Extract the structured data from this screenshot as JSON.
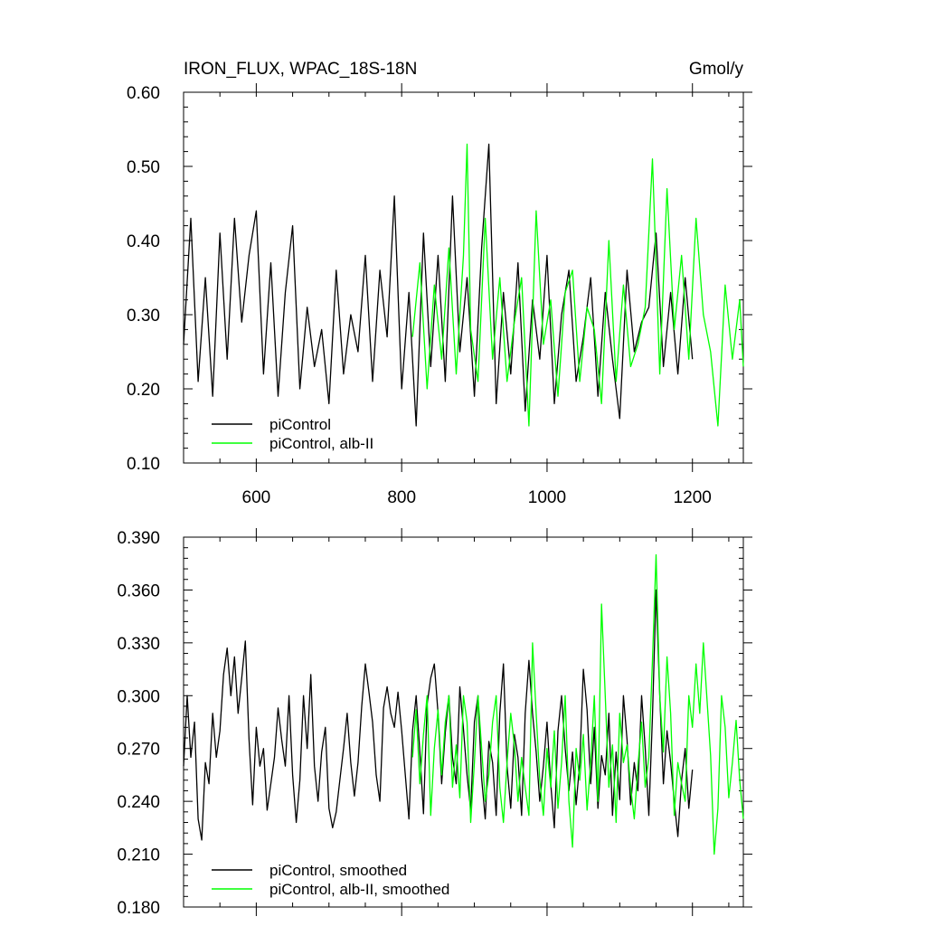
{
  "colors": {
    "piControl": "#000000",
    "alb_II": "#00ff00",
    "axis": "#000000",
    "background": "#ffffff"
  },
  "chart_data": [
    {
      "type": "line",
      "title": "IRON_FLUX, WPAC_18S-18N",
      "units": "Gmol/y",
      "xlim": [
        500,
        1270
      ],
      "ylim": [
        0.1,
        0.6
      ],
      "x_ticks": [
        600,
        800,
        1000,
        1200
      ],
      "x_tick_labels": [
        "600",
        "800",
        "1000",
        "1200"
      ],
      "y_ticks": [
        0.1,
        0.2,
        0.3,
        0.4,
        0.5,
        0.6
      ],
      "y_tick_labels": [
        "0.10",
        "0.20",
        "0.30",
        "0.40",
        "0.50",
        "0.60"
      ],
      "grid": false,
      "legend_position": "bottom-left",
      "series": [
        {
          "name": "piControl",
          "color_key": "piControl",
          "x": [
            500,
            510,
            520,
            530,
            540,
            550,
            560,
            570,
            580,
            590,
            600,
            610,
            620,
            630,
            640,
            650,
            660,
            670,
            680,
            690,
            700,
            710,
            720,
            730,
            740,
            750,
            760,
            770,
            780,
            790,
            800,
            810,
            820,
            830,
            840,
            850,
            860,
            870,
            880,
            890,
            900,
            910,
            920,
            930,
            940,
            950,
            960,
            970,
            980,
            990,
            1000,
            1010,
            1020,
            1030,
            1040,
            1050,
            1060,
            1070,
            1080,
            1090,
            1100,
            1110,
            1120,
            1130,
            1140,
            1150,
            1160,
            1170,
            1180,
            1190,
            1200
          ],
          "values": [
            0.26,
            0.43,
            0.21,
            0.35,
            0.19,
            0.41,
            0.24,
            0.43,
            0.29,
            0.38,
            0.44,
            0.22,
            0.37,
            0.19,
            0.33,
            0.42,
            0.2,
            0.31,
            0.23,
            0.28,
            0.18,
            0.36,
            0.22,
            0.3,
            0.25,
            0.38,
            0.21,
            0.36,
            0.27,
            0.46,
            0.2,
            0.33,
            0.15,
            0.41,
            0.23,
            0.38,
            0.21,
            0.46,
            0.25,
            0.35,
            0.19,
            0.39,
            0.53,
            0.18,
            0.33,
            0.22,
            0.37,
            0.17,
            0.32,
            0.24,
            0.38,
            0.18,
            0.3,
            0.36,
            0.21,
            0.27,
            0.35,
            0.19,
            0.33,
            0.24,
            0.16,
            0.36,
            0.25,
            0.29,
            0.31,
            0.41,
            0.23,
            0.33,
            0.22,
            0.35,
            0.24
          ]
        },
        {
          "name": "piControl, alb-II",
          "color_key": "alb_II",
          "x": [
            815,
            825,
            835,
            845,
            855,
            865,
            875,
            885,
            890,
            895,
            905,
            915,
            925,
            935,
            945,
            955,
            965,
            975,
            985,
            995,
            1005,
            1015,
            1025,
            1035,
            1045,
            1055,
            1065,
            1075,
            1085,
            1095,
            1105,
            1115,
            1125,
            1135,
            1145,
            1155,
            1165,
            1175,
            1185,
            1195,
            1205,
            1215,
            1225,
            1235,
            1245,
            1255,
            1265,
            1270
          ],
          "values": [
            0.27,
            0.37,
            0.2,
            0.34,
            0.24,
            0.39,
            0.22,
            0.38,
            0.53,
            0.28,
            0.21,
            0.43,
            0.24,
            0.35,
            0.21,
            0.29,
            0.35,
            0.15,
            0.44,
            0.26,
            0.32,
            0.19,
            0.33,
            0.36,
            0.21,
            0.31,
            0.28,
            0.18,
            0.4,
            0.21,
            0.34,
            0.23,
            0.26,
            0.31,
            0.51,
            0.22,
            0.47,
            0.28,
            0.38,
            0.24,
            0.43,
            0.3,
            0.25,
            0.15,
            0.34,
            0.24,
            0.32,
            0.23
          ]
        }
      ]
    },
    {
      "type": "line",
      "xlim": [
        500,
        1270
      ],
      "ylim": [
        0.18,
        0.39
      ],
      "x_ticks": [
        600,
        800,
        1000,
        1200
      ],
      "y_ticks": [
        0.18,
        0.21,
        0.24,
        0.27,
        0.3,
        0.33,
        0.36,
        0.39
      ],
      "y_tick_labels": [
        "0.180",
        "0.210",
        "0.240",
        "0.270",
        "0.300",
        "0.330",
        "0.360",
        "0.390"
      ],
      "grid": false,
      "legend_position": "bottom-left",
      "series": [
        {
          "name": "piControl, smoothed",
          "color_key": "piControl",
          "x": [
            500,
            505,
            510,
            515,
            520,
            525,
            530,
            535,
            540,
            545,
            550,
            555,
            560,
            565,
            570,
            575,
            580,
            585,
            590,
            595,
            600,
            605,
            610,
            615,
            620,
            625,
            630,
            635,
            640,
            645,
            650,
            655,
            660,
            665,
            670,
            675,
            680,
            685,
            690,
            695,
            700,
            705,
            710,
            715,
            720,
            725,
            730,
            735,
            740,
            745,
            750,
            755,
            760,
            765,
            770,
            775,
            780,
            785,
            790,
            795,
            800,
            805,
            810,
            815,
            820,
            825,
            830,
            835,
            840,
            845,
            850,
            855,
            860,
            865,
            870,
            875,
            880,
            885,
            890,
            895,
            900,
            905,
            910,
            915,
            920,
            925,
            930,
            935,
            940,
            945,
            950,
            955,
            960,
            965,
            970,
            975,
            980,
            985,
            990,
            995,
            1000,
            1005,
            1010,
            1015,
            1020,
            1025,
            1030,
            1035,
            1040,
            1045,
            1050,
            1055,
            1060,
            1065,
            1070,
            1075,
            1080,
            1085,
            1090,
            1095,
            1100,
            1105,
            1110,
            1115,
            1120,
            1125,
            1130,
            1135,
            1140,
            1145,
            1150,
            1155,
            1160,
            1165,
            1170,
            1175,
            1180,
            1185,
            1190,
            1195,
            1200
          ],
          "values": [
            0.26,
            0.3,
            0.265,
            0.285,
            0.23,
            0.218,
            0.262,
            0.25,
            0.29,
            0.265,
            0.28,
            0.312,
            0.327,
            0.3,
            0.322,
            0.29,
            0.31,
            0.331,
            0.275,
            0.238,
            0.282,
            0.26,
            0.27,
            0.235,
            0.25,
            0.265,
            0.293,
            0.275,
            0.26,
            0.3,
            0.255,
            0.228,
            0.252,
            0.3,
            0.27,
            0.312,
            0.26,
            0.24,
            0.268,
            0.282,
            0.236,
            0.225,
            0.234,
            0.252,
            0.27,
            0.29,
            0.262,
            0.243,
            0.262,
            0.294,
            0.318,
            0.302,
            0.285,
            0.255,
            0.24,
            0.293,
            0.305,
            0.29,
            0.282,
            0.302,
            0.28,
            0.255,
            0.23,
            0.28,
            0.3,
            0.268,
            0.233,
            0.295,
            0.31,
            0.318,
            0.29,
            0.25,
            0.279,
            0.3,
            0.265,
            0.25,
            0.305,
            0.281,
            0.255,
            0.235,
            0.285,
            0.3,
            0.253,
            0.23,
            0.274,
            0.262,
            0.232,
            0.29,
            0.318,
            0.26,
            0.236,
            0.278,
            0.265,
            0.232,
            0.29,
            0.32,
            0.29,
            0.268,
            0.24,
            0.26,
            0.285,
            0.25,
            0.225,
            0.28,
            0.3,
            0.27,
            0.246,
            0.268,
            0.238,
            0.262,
            0.315,
            0.292,
            0.25,
            0.282,
            0.236,
            0.266,
            0.255,
            0.29,
            0.232,
            0.268,
            0.241,
            0.3,
            0.275,
            0.238,
            0.262,
            0.246,
            0.3,
            0.27,
            0.232,
            0.288,
            0.36,
            0.3,
            0.25,
            0.28,
            0.262,
            0.24,
            0.22,
            0.252,
            0.27,
            0.236,
            0.258
          ]
        },
        {
          "name": "piControl, alb-II, smoothed",
          "color_key": "alb_II",
          "x": [
            815,
            820,
            825,
            830,
            835,
            840,
            845,
            850,
            855,
            860,
            865,
            870,
            875,
            880,
            885,
            890,
            895,
            900,
            905,
            910,
            915,
            920,
            925,
            930,
            935,
            940,
            945,
            950,
            955,
            960,
            965,
            970,
            975,
            980,
            985,
            990,
            995,
            1000,
            1005,
            1010,
            1015,
            1020,
            1025,
            1030,
            1035,
            1040,
            1045,
            1050,
            1055,
            1060,
            1065,
            1070,
            1075,
            1080,
            1085,
            1090,
            1095,
            1100,
            1105,
            1110,
            1115,
            1120,
            1125,
            1130,
            1135,
            1140,
            1145,
            1150,
            1155,
            1160,
            1165,
            1170,
            1175,
            1180,
            1185,
            1190,
            1195,
            1200,
            1205,
            1210,
            1215,
            1220,
            1225,
            1230,
            1235,
            1240,
            1245,
            1250,
            1255,
            1260,
            1265,
            1270
          ],
          "values": [
            0.265,
            0.292,
            0.25,
            0.278,
            0.3,
            0.232,
            0.27,
            0.292,
            0.255,
            0.285,
            0.3,
            0.248,
            0.272,
            0.242,
            0.3,
            0.285,
            0.228,
            0.262,
            0.3,
            0.27,
            0.24,
            0.255,
            0.285,
            0.3,
            0.248,
            0.228,
            0.262,
            0.29,
            0.272,
            0.24,
            0.265,
            0.248,
            0.232,
            0.33,
            0.29,
            0.252,
            0.232,
            0.27,
            0.248,
            0.28,
            0.236,
            0.262,
            0.3,
            0.24,
            0.214,
            0.27,
            0.252,
            0.278,
            0.235,
            0.262,
            0.3,
            0.24,
            0.352,
            0.3,
            0.248,
            0.272,
            0.228,
            0.29,
            0.262,
            0.272,
            0.248,
            0.23,
            0.26,
            0.285,
            0.248,
            0.265,
            0.32,
            0.38,
            0.3,
            0.268,
            0.322,
            0.29,
            0.232,
            0.262,
            0.25,
            0.24,
            0.3,
            0.282,
            0.318,
            0.29,
            0.33,
            0.298,
            0.266,
            0.21,
            0.236,
            0.3,
            0.282,
            0.242,
            0.262,
            0.286,
            0.252,
            0.23
          ]
        }
      ]
    }
  ]
}
